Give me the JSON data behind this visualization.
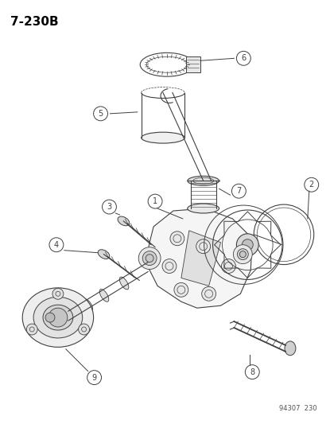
{
  "title": "7-230B",
  "watermark": "94307  230",
  "bg": "#ffffff",
  "lc": "#404040",
  "figsize": [
    4.15,
    5.33
  ],
  "dpi": 100
}
